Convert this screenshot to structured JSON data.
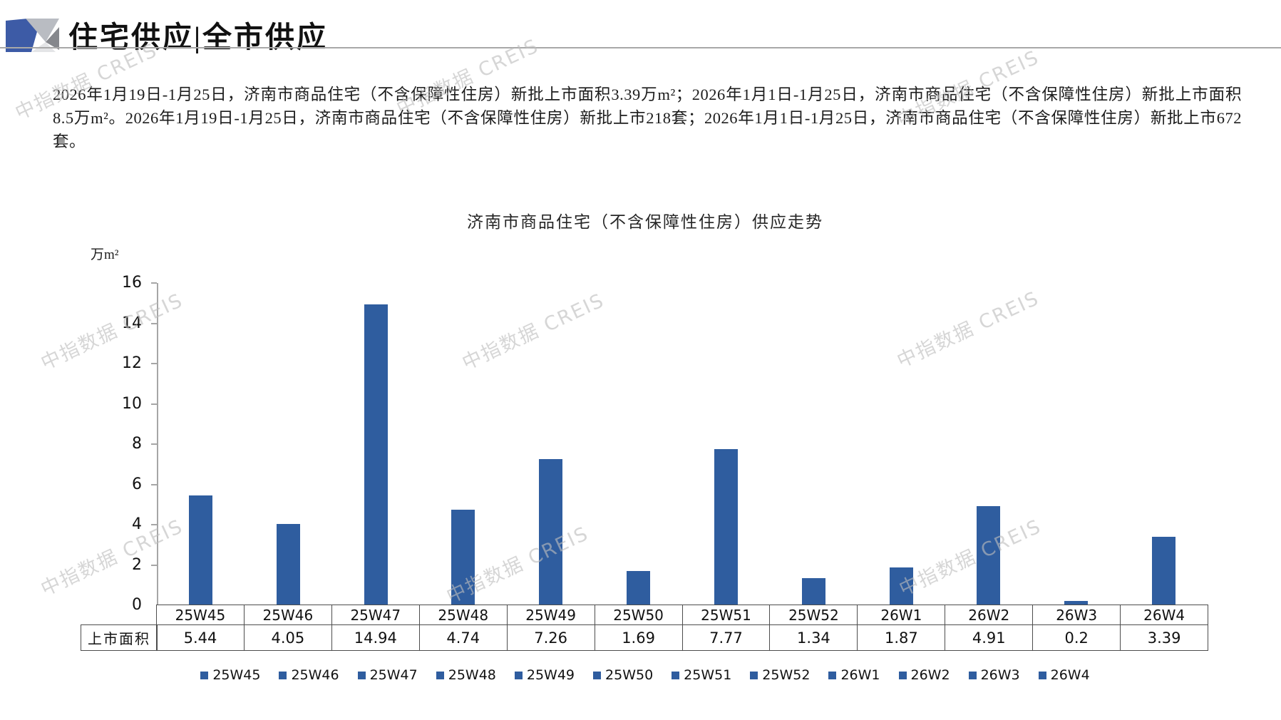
{
  "header": {
    "title": "住宅供应|全市供应"
  },
  "summary": {
    "text": "2026年1月19日-1月25日，济南市商品住宅（不含保障性住房）新批上市面积3.39万m²；2026年1月1日-1月25日，济南市商品住宅（不含保障性住房）新批上市面积8.5万m²。2026年1月19日-1月25日，济南市商品住宅（不含保障性住房）新批上市218套；2026年1月1日-1月25日，济南市商品住宅（不含保障性住房）新批上市672套。"
  },
  "watermark": {
    "text": "中指数据 CREIS"
  },
  "chart_data": {
    "type": "bar",
    "title": "济南市商品住宅（不含保障性住房）供应走势",
    "ylabel": "万m²",
    "categories": [
      "25W45",
      "25W46",
      "25W47",
      "25W48",
      "25W49",
      "25W50",
      "25W51",
      "25W52",
      "26W1",
      "26W2",
      "26W3",
      "26W4"
    ],
    "values": [
      5.44,
      4.05,
      14.94,
      4.74,
      7.26,
      1.69,
      7.77,
      1.34,
      1.87,
      4.91,
      0.2,
      3.39
    ],
    "value_labels": [
      "5.44",
      "4.05",
      "14.94",
      "4.74",
      "7.26",
      "1.69",
      "7.77",
      "1.34",
      "1.87",
      "4.91",
      "0.2",
      "3.39"
    ],
    "table_row_label": "上市面积",
    "yticks": [
      0,
      2,
      4,
      6,
      8,
      10,
      12,
      14,
      16
    ],
    "ylim": [
      0,
      16
    ],
    "grid": false,
    "bar_color": "#2F5D9F",
    "legend_position": "bottom",
    "legend": [
      "25W45",
      "25W46",
      "25W47",
      "25W48",
      "25W49",
      "25W50",
      "25W51",
      "25W52",
      "26W1",
      "26W2",
      "26W3",
      "26W4"
    ]
  }
}
